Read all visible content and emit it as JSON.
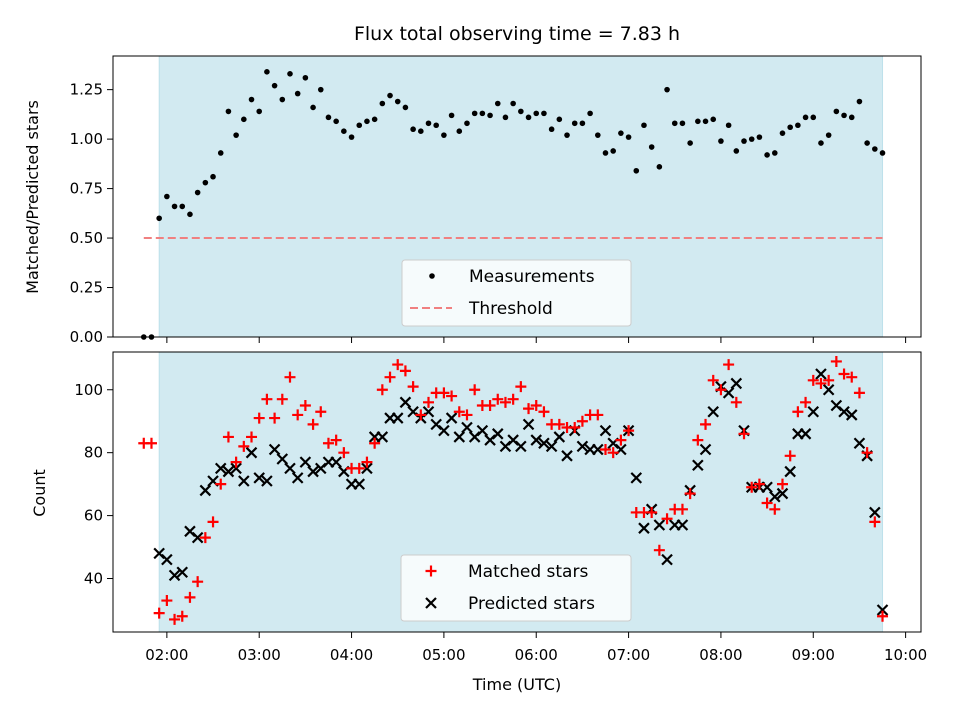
{
  "chart_data": [
    {
      "type": "scatter",
      "title": "Flux total observing time = 7.83 h",
      "ylabel": "Matched/Predicted stars",
      "ylim": [
        0,
        1.42
      ],
      "yticks": [
        "0.00",
        "0.25",
        "0.50",
        "0.75",
        "1.00",
        "1.25"
      ],
      "ytick_values": [
        0,
        0.25,
        0.5,
        0.75,
        1.0,
        1.25
      ],
      "observing_window": {
        "start": "01:55",
        "end": "09:45"
      },
      "band_color": "#add8e6",
      "legend_placement": "bottom-center",
      "series": [
        {
          "name": "Measurements",
          "color": "#000000",
          "marker": "dot",
          "x": [
            "01:45",
            "01:50",
            "01:55",
            "02:00",
            "02:05",
            "02:10",
            "02:15",
            "02:20",
            "02:25",
            "02:30",
            "02:35",
            "02:40",
            "02:45",
            "02:50",
            "02:55",
            "03:00",
            "03:05",
            "03:10",
            "03:15",
            "03:20",
            "03:25",
            "03:30",
            "03:35",
            "03:40",
            "03:45",
            "03:50",
            "03:55",
            "04:00",
            "04:05",
            "04:10",
            "04:15",
            "04:20",
            "04:25",
            "04:30",
            "04:35",
            "04:40",
            "04:45",
            "04:50",
            "04:55",
            "05:00",
            "05:05",
            "05:10",
            "05:15",
            "05:20",
            "05:25",
            "05:30",
            "05:35",
            "05:40",
            "05:45",
            "05:50",
            "05:55",
            "06:00",
            "06:05",
            "06:10",
            "06:15",
            "06:20",
            "06:25",
            "06:30",
            "06:35",
            "06:40",
            "06:45",
            "06:50",
            "06:55",
            "07:00",
            "07:05",
            "07:10",
            "07:15",
            "07:20",
            "07:25",
            "07:30",
            "07:35",
            "07:40",
            "07:45",
            "07:50",
            "07:55",
            "08:00",
            "08:05",
            "08:10",
            "08:15",
            "08:20",
            "08:25",
            "08:30",
            "08:35",
            "08:40",
            "08:45",
            "08:50",
            "08:55",
            "09:00",
            "09:05",
            "09:10",
            "09:15",
            "09:20",
            "09:25",
            "09:30",
            "09:35",
            "09:40",
            "09:45"
          ],
          "y": [
            0.0,
            0.0,
            0.6,
            0.71,
            0.66,
            0.66,
            0.62,
            0.73,
            0.78,
            0.81,
            0.93,
            1.14,
            1.02,
            1.1,
            1.2,
            1.14,
            1.34,
            1.27,
            1.2,
            1.33,
            1.23,
            1.31,
            1.16,
            1.25,
            1.11,
            1.09,
            1.04,
            1.01,
            1.07,
            1.09,
            1.1,
            1.18,
            1.22,
            1.19,
            1.16,
            1.05,
            1.04,
            1.08,
            1.07,
            1.02,
            1.12,
            1.04,
            1.08,
            1.13,
            1.13,
            1.12,
            1.18,
            1.11,
            1.18,
            1.14,
            1.11,
            1.13,
            1.13,
            1.05,
            1.1,
            1.02,
            1.08,
            1.08,
            1.13,
            1.02,
            0.93,
            0.94,
            1.03,
            1.01,
            0.84,
            1.07,
            0.96,
            0.86,
            1.25,
            1.08,
            1.08,
            0.98,
            1.09,
            1.09,
            1.1,
            0.99,
            1.07,
            0.94,
            0.99,
            1.0,
            1.01,
            0.92,
            0.93,
            1.03,
            1.06,
            1.07,
            1.11,
            1.11,
            0.98,
            1.02,
            1.14,
            1.12,
            1.11,
            1.19,
            0.98,
            0.95,
            0.93
          ]
        },
        {
          "name": "Threshold",
          "color": "#f08080",
          "style": "dashed",
          "x": [
            "01:45",
            "09:45"
          ],
          "y": [
            0.5,
            0.5
          ]
        }
      ]
    },
    {
      "type": "scatter",
      "xlabel": "Time (UTC)",
      "ylabel": "Count",
      "ylim": [
        23,
        112
      ],
      "yticks": [
        "40",
        "60",
        "80",
        "100"
      ],
      "ytick_values": [
        40,
        60,
        80,
        100
      ],
      "xlim": [
        "01:25",
        "10:10"
      ],
      "xticks": [
        "02:00",
        "03:00",
        "04:00",
        "05:00",
        "06:00",
        "07:00",
        "08:00",
        "09:00",
        "10:00"
      ],
      "observing_window": {
        "start": "01:55",
        "end": "09:45"
      },
      "band_color": "#add8e6",
      "legend_placement": "bottom-center",
      "series": [
        {
          "name": "Matched stars",
          "color": "#ff0000",
          "marker": "plus",
          "x": [
            "01:45",
            "01:50",
            "01:55",
            "02:00",
            "02:05",
            "02:10",
            "02:15",
            "02:20",
            "02:25",
            "02:30",
            "02:35",
            "02:40",
            "02:45",
            "02:50",
            "02:55",
            "03:00",
            "03:05",
            "03:10",
            "03:15",
            "03:20",
            "03:25",
            "03:30",
            "03:35",
            "03:40",
            "03:45",
            "03:50",
            "03:55",
            "04:00",
            "04:05",
            "04:10",
            "04:15",
            "04:20",
            "04:25",
            "04:30",
            "04:35",
            "04:40",
            "04:45",
            "04:50",
            "04:55",
            "05:00",
            "05:05",
            "05:10",
            "05:15",
            "05:20",
            "05:25",
            "05:30",
            "05:35",
            "05:40",
            "05:45",
            "05:50",
            "05:55",
            "06:00",
            "06:05",
            "06:10",
            "06:15",
            "06:20",
            "06:25",
            "06:30",
            "06:35",
            "06:40",
            "06:45",
            "06:50",
            "06:55",
            "07:00",
            "07:05",
            "07:10",
            "07:15",
            "07:20",
            "07:25",
            "07:30",
            "07:35",
            "07:40",
            "07:45",
            "07:50",
            "07:55",
            "08:00",
            "08:05",
            "08:10",
            "08:15",
            "08:20",
            "08:25",
            "08:30",
            "08:35",
            "08:40",
            "08:45",
            "08:50",
            "08:55",
            "09:00",
            "09:05",
            "09:10",
            "09:15",
            "09:20",
            "09:25",
            "09:30",
            "09:35",
            "09:40",
            "09:45"
          ],
          "y": [
            83,
            83,
            29,
            33,
            27,
            28,
            34,
            39,
            53,
            58,
            70,
            85,
            77,
            82,
            85,
            91,
            97,
            91,
            97,
            104,
            92,
            95,
            89,
            93,
            83,
            84,
            80,
            75,
            75,
            77,
            83,
            100,
            104,
            108,
            106,
            101,
            92,
            96,
            99,
            99,
            98,
            93,
            92,
            100,
            95,
            95,
            97,
            96,
            97,
            101,
            94,
            95,
            93,
            89,
            89,
            88,
            88,
            90,
            92,
            92,
            81,
            80,
            84,
            87,
            61,
            61,
            61,
            49,
            59,
            62,
            62,
            67,
            84,
            89,
            103,
            100,
            108,
            96,
            86,
            69,
            70,
            64,
            62,
            70,
            79,
            93,
            96,
            103,
            102,
            103,
            109,
            105,
            104,
            99,
            80,
            58,
            28
          ]
        },
        {
          "name": "Predicted stars",
          "color": "#000000",
          "marker": "cross",
          "x": [
            "01:55",
            "02:00",
            "02:05",
            "02:10",
            "02:15",
            "02:20",
            "02:25",
            "02:30",
            "02:35",
            "02:40",
            "02:45",
            "02:50",
            "02:55",
            "03:00",
            "03:05",
            "03:10",
            "03:15",
            "03:20",
            "03:25",
            "03:30",
            "03:35",
            "03:40",
            "03:45",
            "03:50",
            "03:55",
            "04:00",
            "04:05",
            "04:10",
            "04:15",
            "04:20",
            "04:25",
            "04:30",
            "04:35",
            "04:40",
            "04:45",
            "04:50",
            "04:55",
            "05:00",
            "05:05",
            "05:10",
            "05:15",
            "05:20",
            "05:25",
            "05:30",
            "05:35",
            "05:40",
            "05:45",
            "05:50",
            "05:55",
            "06:00",
            "06:05",
            "06:10",
            "06:15",
            "06:20",
            "06:25",
            "06:30",
            "06:35",
            "06:40",
            "06:45",
            "06:50",
            "06:55",
            "07:00",
            "07:05",
            "07:10",
            "07:15",
            "07:20",
            "07:25",
            "07:30",
            "07:35",
            "07:40",
            "07:45",
            "07:50",
            "07:55",
            "08:00",
            "08:05",
            "08:10",
            "08:15",
            "08:20",
            "08:25",
            "08:30",
            "08:35",
            "08:40",
            "08:45",
            "08:50",
            "08:55",
            "09:00",
            "09:05",
            "09:10",
            "09:15",
            "09:20",
            "09:25",
            "09:30",
            "09:35",
            "09:40",
            "09:45"
          ],
          "y": [
            48,
            46,
            41,
            42,
            55,
            53,
            68,
            71,
            75,
            74,
            75,
            71,
            80,
            72,
            71,
            81,
            78,
            75,
            72,
            77,
            74,
            75,
            77,
            77,
            74,
            70,
            70,
            75,
            85,
            85,
            91,
            91,
            96,
            93,
            91,
            93,
            89,
            87,
            91,
            85,
            88,
            85,
            87,
            84,
            86,
            82,
            84,
            82,
            89,
            84,
            83,
            82,
            85,
            79,
            87,
            82,
            81,
            81,
            87,
            83,
            81,
            87,
            72,
            56,
            62,
            57,
            46,
            57,
            57,
            68,
            76,
            81,
            93,
            101,
            99,
            102,
            87,
            69,
            69,
            69,
            66,
            67,
            74,
            86,
            86,
            93,
            105,
            100,
            95,
            93,
            92,
            83,
            79,
            61,
            30
          ]
        }
      ]
    }
  ]
}
